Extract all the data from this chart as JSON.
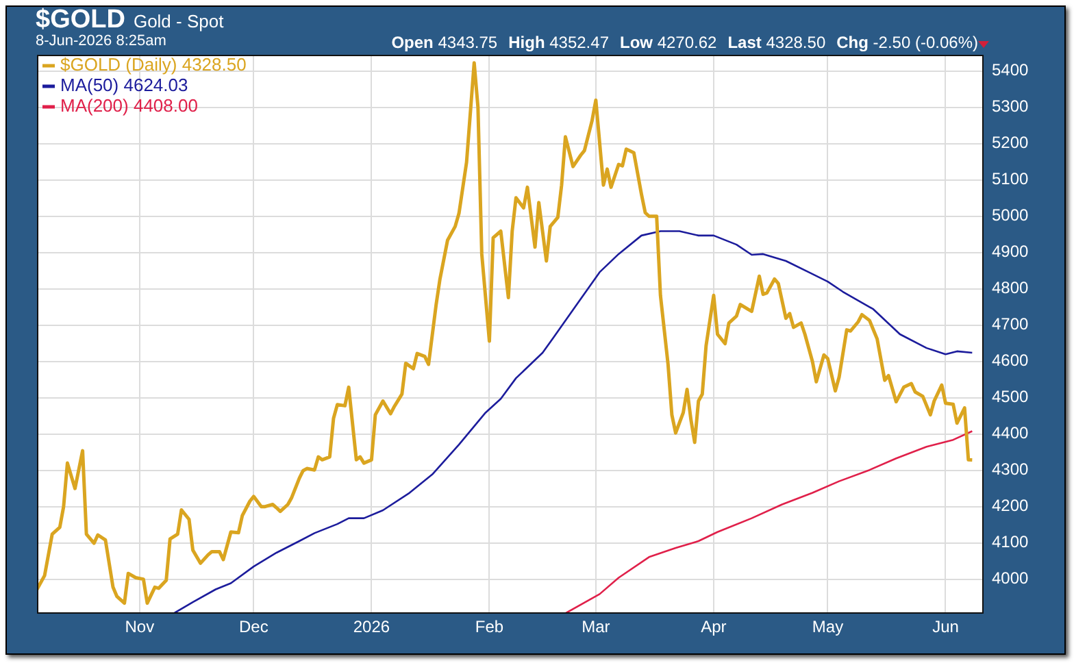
{
  "chart_data": {
    "type": "line",
    "title": "$GOLD",
    "subtitle": "Gold - Spot",
    "annotations": [
      "8-Jun-2026 8:25am",
      "Open 4343.75",
      "High 4352.47",
      "Low 4270.62",
      "Last 4328.50",
      "Chg -2.50 (-0.06%)"
    ],
    "xlim": [
      "2025-10-05",
      "2026-06-11"
    ],
    "xticks": [
      {
        "value": "2025-11-01",
        "label": "Nov"
      },
      {
        "value": "2025-12-01",
        "label": "Dec"
      },
      {
        "value": "2026-01-01",
        "label": "2026"
      },
      {
        "value": "2026-02-01",
        "label": "Feb"
      },
      {
        "value": "2026-03-01",
        "label": "Mar"
      },
      {
        "value": "2026-04-01",
        "label": "Apr"
      },
      {
        "value": "2026-05-01",
        "label": "May"
      },
      {
        "value": "2026-06-01",
        "label": "Jun"
      }
    ],
    "ylim": [
      3905,
      5445
    ],
    "yticks": [
      4000,
      4100,
      4200,
      4300,
      4400,
      4500,
      4600,
      4700,
      4800,
      4900,
      5000,
      5100,
      5200,
      5300,
      5400
    ],
    "grid": true,
    "legend": "top left",
    "marker": "none",
    "line_style": "solid",
    "series": [
      {
        "name": "$GOLD (Daily) 4328.50",
        "color": "#daa520",
        "x": [
          "2025-10-05",
          "2025-10-07",
          "2025-10-09",
          "2025-10-11",
          "2025-10-12",
          "2025-10-13",
          "2025-10-15",
          "2025-10-17",
          "2025-10-18",
          "2025-10-20",
          "2025-10-21",
          "2025-10-23",
          "2025-10-25",
          "2025-10-26",
          "2025-10-28",
          "2025-10-29",
          "2025-10-31",
          "2025-11-02",
          "2025-11-03",
          "2025-11-05",
          "2025-11-06",
          "2025-11-08",
          "2025-11-09",
          "2025-11-11",
          "2025-11-12",
          "2025-11-14",
          "2025-11-15",
          "2025-11-17",
          "2025-11-19",
          "2025-11-20",
          "2025-11-22",
          "2025-11-23",
          "2025-11-25",
          "2025-11-27",
          "2025-11-28",
          "2025-11-30",
          "2025-12-01",
          "2025-12-03",
          "2025-12-04",
          "2025-12-06",
          "2025-12-07",
          "2025-12-08",
          "2025-12-10",
          "2025-12-11",
          "2025-12-13",
          "2025-12-14",
          "2025-12-15",
          "2025-12-17",
          "2025-12-18",
          "2025-12-19",
          "2025-12-21",
          "2025-12-22",
          "2025-12-23",
          "2025-12-25",
          "2025-12-26",
          "2025-12-28",
          "2025-12-29",
          "2025-12-30",
          "2026-01-01",
          "2026-01-02",
          "2026-01-04",
          "2026-01-06",
          "2026-01-07",
          "2026-01-09",
          "2026-01-10",
          "2026-01-12",
          "2026-01-13",
          "2026-01-15",
          "2026-01-16",
          "2026-01-18",
          "2026-01-19",
          "2026-01-21",
          "2026-01-23",
          "2026-01-24",
          "2026-01-26",
          "2026-01-28",
          "2026-01-29",
          "2026-01-30",
          "2026-02-01",
          "2026-02-02",
          "2026-02-04",
          "2026-02-06",
          "2026-02-07",
          "2026-02-08",
          "2026-02-10",
          "2026-02-11",
          "2026-02-13",
          "2026-02-14",
          "2026-02-16",
          "2026-02-17",
          "2026-02-19",
          "2026-02-20",
          "2026-02-21",
          "2026-02-23",
          "2026-02-25",
          "2026-02-26",
          "2026-02-28",
          "2026-03-01",
          "2026-03-03",
          "2026-03-04",
          "2026-03-05",
          "2026-03-07",
          "2026-03-08",
          "2026-03-09",
          "2026-03-11",
          "2026-03-13",
          "2026-03-14",
          "2026-03-15",
          "2026-03-17",
          "2026-03-18",
          "2026-03-20",
          "2026-03-21",
          "2026-03-22",
          "2026-03-24",
          "2026-03-25",
          "2026-03-26",
          "2026-03-27",
          "2026-03-28",
          "2026-03-29",
          "2026-03-30",
          "2026-04-01",
          "2026-04-02",
          "2026-04-04",
          "2026-04-05",
          "2026-04-07",
          "2026-04-08",
          "2026-04-10",
          "2026-04-11",
          "2026-04-13",
          "2026-04-14",
          "2026-04-15",
          "2026-04-17",
          "2026-04-18",
          "2026-04-20",
          "2026-04-21",
          "2026-04-22",
          "2026-04-24",
          "2026-04-25",
          "2026-04-27",
          "2026-04-28",
          "2026-04-30",
          "2026-05-01",
          "2026-05-03",
          "2026-05-04",
          "2026-05-06",
          "2026-05-07",
          "2026-05-09",
          "2026-05-10",
          "2026-05-12",
          "2026-05-14",
          "2026-05-16",
          "2026-05-17",
          "2026-05-19",
          "2026-05-21",
          "2026-05-23",
          "2026-05-24",
          "2026-05-26",
          "2026-05-28",
          "2026-05-29",
          "2026-05-31",
          "2026-06-01",
          "2026-06-03",
          "2026-06-04",
          "2026-06-06",
          "2026-06-07",
          "2026-06-08"
        ],
        "values": [
          3972,
          4010,
          4124,
          4143,
          4200,
          4320,
          4250,
          4354,
          4124,
          4099,
          4122,
          4108,
          3978,
          3953,
          3934,
          4016,
          4004,
          4000,
          3934,
          3978,
          3975,
          3997,
          4111,
          4124,
          4191,
          4165,
          4080,
          4044,
          4067,
          4076,
          4076,
          4054,
          4130,
          4128,
          4175,
          4215,
          4228,
          4200,
          4200,
          4206,
          4197,
          4187,
          4206,
          4225,
          4278,
          4299,
          4305,
          4301,
          4337,
          4329,
          4337,
          4443,
          4481,
          4478,
          4529,
          4329,
          4337,
          4320,
          4329,
          4453,
          4491,
          4456,
          4476,
          4510,
          4595,
          4580,
          4622,
          4614,
          4592,
          4757,
          4827,
          4934,
          4972,
          5008,
          5149,
          5423,
          5300,
          4896,
          4656,
          4941,
          4959,
          4776,
          4959,
          5051,
          5023,
          5080,
          4915,
          5038,
          4877,
          4972,
          4997,
          5086,
          5219,
          5137,
          5168,
          5181,
          5263,
          5320,
          5086,
          5130,
          5080,
          5143,
          5139,
          5185,
          5175,
          5061,
          5010,
          5000,
          5000,
          4782,
          4592,
          4453,
          4403,
          4459,
          4523,
          4441,
          4377,
          4491,
          4510,
          4643,
          4782,
          4675,
          4649,
          4706,
          4725,
          4757,
          4744,
          4738,
          4835,
          4785,
          4789,
          4827,
          4815,
          4719,
          4732,
          4694,
          4706,
          4675,
          4599,
          4544,
          4618,
          4608,
          4519,
          4557,
          4687,
          4684,
          4709,
          4729,
          4713,
          4662,
          4548,
          4561,
          4489,
          4529,
          4539,
          4516,
          4504,
          4453,
          4491,
          4535,
          4485,
          4482,
          4430,
          4472,
          4329,
          4328.5
        ]
      },
      {
        "name": "MA(50) 4624.03",
        "color": "#1c1c9c",
        "x": [
          "2025-11-10",
          "2025-11-15",
          "2025-11-21",
          "2025-11-25",
          "2025-12-01",
          "2025-12-07",
          "2025-12-13",
          "2025-12-17",
          "2025-12-23",
          "2025-12-26",
          "2025-12-30",
          "2026-01-04",
          "2026-01-11",
          "2026-01-17",
          "2026-01-24",
          "2026-01-31",
          "2026-02-04",
          "2026-02-08",
          "2026-02-15",
          "2026-02-18",
          "2026-02-24",
          "2026-03-02",
          "2026-03-07",
          "2026-03-13",
          "2026-03-18",
          "2026-03-23",
          "2026-03-28",
          "2026-04-01",
          "2026-04-07",
          "2026-04-11",
          "2026-04-14",
          "2026-04-20",
          "2026-04-26",
          "2026-05-01",
          "2026-05-05",
          "2026-05-13",
          "2026-05-20",
          "2026-05-27",
          "2026-06-01",
          "2026-06-04",
          "2026-06-08"
        ],
        "values": [
          3906,
          3937,
          3972,
          3989,
          4035,
          4073,
          4105,
          4127,
          4152,
          4168,
          4168,
          4190,
          4238,
          4289,
          4371,
          4459,
          4497,
          4554,
          4624,
          4668,
          4757,
          4846,
          4896,
          4947,
          4959,
          4959,
          4947,
          4947,
          4922,
          4894,
          4896,
          4877,
          4846,
          4820,
          4792,
          4744,
          4675,
          4637,
          4620,
          4628,
          4624
        ]
      },
      {
        "name": "MA(200) 4408.00",
        "color": "#e0204a",
        "x": [
          "2026-02-21",
          "2026-03-02",
          "2026-03-07",
          "2026-03-15",
          "2026-03-22",
          "2026-03-28",
          "2026-04-02",
          "2026-04-11",
          "2026-04-19",
          "2026-04-27",
          "2026-05-04",
          "2026-05-12",
          "2026-05-19",
          "2026-05-27",
          "2026-06-03",
          "2026-06-08"
        ],
        "values": [
          3906,
          3959,
          4004,
          4061,
          4086,
          4105,
          4130,
          4168,
          4206,
          4238,
          4270,
          4301,
          4333,
          4365,
          4384,
          4408
        ]
      }
    ]
  }
}
